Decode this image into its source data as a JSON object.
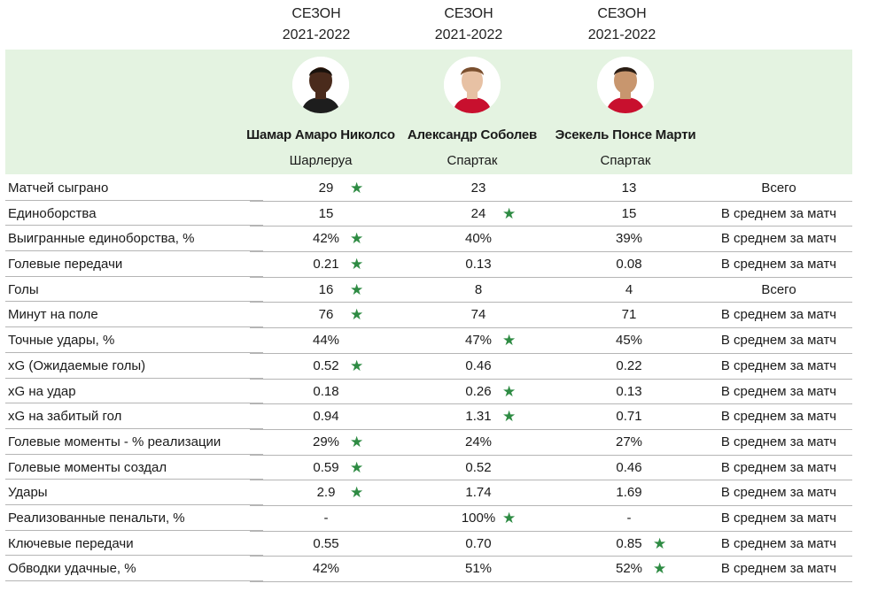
{
  "seasons": [
    {
      "line1": "СЕЗОН",
      "line2": "2021-2022"
    },
    {
      "line1": "СЕЗОН",
      "line2": "2021-2022"
    },
    {
      "line1": "СЕЗОН",
      "line2": "2021-2022"
    }
  ],
  "players": [
    {
      "name": "Шамар Амаро Николсо",
      "club": "Шарлеруа",
      "skin": "#4a2b1c",
      "hair": "#1a120c",
      "shirt": "#1d1d1d"
    },
    {
      "name": "Александр Соболев",
      "club": "Спартак",
      "skin": "#e7c1a4",
      "hair": "#7a4f2e",
      "shirt": "#c8102e"
    },
    {
      "name": "Эсекель Понсе Марти",
      "club": "Спартак",
      "skin": "#c8966e",
      "hair": "#2a1d14",
      "shirt": "#c8102e"
    }
  ],
  "star_color": "#2e8b43",
  "rows": [
    {
      "label": "Матчей сыграно",
      "values": [
        "29",
        "23",
        "13"
      ],
      "best": 0,
      "scope": "Всего"
    },
    {
      "label": "Единоборства",
      "values": [
        "15",
        "24",
        "15"
      ],
      "best": 1,
      "scope": "В среднем за матч"
    },
    {
      "label": "Выигранные единоборства, %",
      "values": [
        "42%",
        "40%",
        "39%"
      ],
      "best": 0,
      "scope": "В среднем за матч"
    },
    {
      "label": "Голевые передачи",
      "values": [
        "0.21",
        "0.13",
        "0.08"
      ],
      "best": 0,
      "scope": "В среднем за матч"
    },
    {
      "label": "Голы",
      "values": [
        "16",
        "8",
        "4"
      ],
      "best": 0,
      "scope": "Всего"
    },
    {
      "label": "Минут на поле",
      "values": [
        "76",
        "74",
        "71"
      ],
      "best": 0,
      "scope": "В среднем за матч"
    },
    {
      "label": "Точные удары, %",
      "values": [
        "44%",
        "47%",
        "45%"
      ],
      "best": 1,
      "scope": "В среднем за матч"
    },
    {
      "label": "xG (Ожидаемые голы)",
      "values": [
        "0.52",
        "0.46",
        "0.22"
      ],
      "best": 0,
      "scope": "В среднем за матч"
    },
    {
      "label": "xG на удар",
      "values": [
        "0.18",
        "0.26",
        "0.13"
      ],
      "best": 1,
      "scope": "В среднем за матч"
    },
    {
      "label": "xG на забитый гол",
      "values": [
        "0.94",
        "1.31",
        "0.71"
      ],
      "best": 1,
      "scope": "В среднем за матч"
    },
    {
      "label": "Голевые моменты - % реализации",
      "values": [
        "29%",
        "24%",
        "27%"
      ],
      "best": 0,
      "scope": "В среднем за матч"
    },
    {
      "label": "Голевые моменты создал",
      "values": [
        "0.59",
        "0.52",
        "0.46"
      ],
      "best": 0,
      "scope": "В среднем за матч"
    },
    {
      "label": "Удары",
      "values": [
        "2.9",
        "1.74",
        "1.69"
      ],
      "best": 0,
      "scope": "В среднем за матч"
    },
    {
      "label": "Реализованные пенальти, %",
      "values": [
        "-",
        "100%",
        "-"
      ],
      "best": 1,
      "scope": "В среднем за матч"
    },
    {
      "label": "Ключевые передачи",
      "values": [
        "0.55",
        "0.70",
        "0.85"
      ],
      "best": 2,
      "scope": "В среднем за матч"
    },
    {
      "label": "Обводки удачные, %",
      "values": [
        "42%",
        "51%",
        "52%"
      ],
      "best": 2,
      "scope": "В среднем за матч"
    }
  ]
}
